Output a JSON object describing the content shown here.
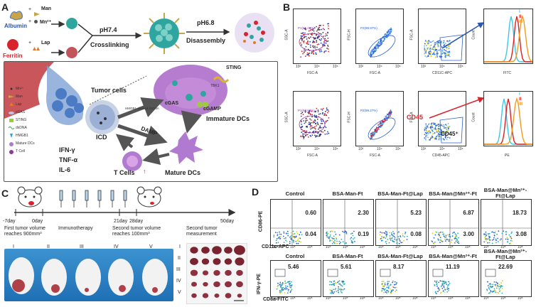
{
  "panels": {
    "a": "A",
    "b": "B",
    "c": "C",
    "d": "D"
  },
  "panelA": {
    "albumin": "Albumin",
    "ferritin": "Ferritin",
    "man": "Man",
    "mn": "Mn²⁺",
    "lap": "Lap",
    "ph74": "pH7.4",
    "crosslinking": "Crosslinking",
    "ph68": "pH6.8",
    "disassembly": "Disassembly",
    "legend": [
      "Mn²⁺",
      "Man",
      "Lap",
      "cGAS",
      "STING",
      "dsDNA",
      "HMGB1",
      "Mature DCs",
      "T Cell"
    ],
    "tumor_cells": "Tumor cells",
    "immature_dcs": "Immature DCs",
    "mature_dcs": "Mature DCs",
    "t_cells": "T Cells",
    "icd": "ICD",
    "damp": "DAMP",
    "cytokines": [
      "IFN-γ",
      "TNF-α",
      "IL-6"
    ],
    "sting": "STING",
    "cgamp": "cGAMP",
    "cgas": "cGAS",
    "tbk1": "TBK1",
    "hmgb1_dsdna": "HMGB1-derived dsDNA"
  },
  "panelB": {
    "row1": [
      {
        "x": "FSC-A",
        "y": "SSC-A",
        "gate": "P1(81.25%)"
      },
      {
        "x": "FSC-A",
        "y": "FSC-H",
        "gate": "P2(98.97%)"
      },
      {
        "x": "CD11C-APC",
        "y": "FSC-A",
        "gate": ""
      }
    ],
    "row2": [
      {
        "x": "FSC-A",
        "y": "SSC-A",
        "gate": "P1(93.63%)"
      },
      {
        "x": "FSC-A",
        "y": "FSC-H",
        "gate": "P2(99.27%)"
      },
      {
        "x": "CD45-APC",
        "y": "FSC-A",
        "gate": ""
      }
    ],
    "ticks": [
      "10²",
      "10⁴",
      "10⁶"
    ],
    "hist1": {
      "x": "FITC",
      "y": "Count",
      "legend": [
        "I",
        "II",
        "III"
      ],
      "colors": [
        "#3cc8e8",
        "#e02020",
        "#f39a1e"
      ]
    },
    "hist2": {
      "x": "PE",
      "y": "Count",
      "legend": [
        "I",
        "II",
        "III"
      ],
      "colors": [
        "#3cc8e8",
        "#e02020",
        "#f39a1e"
      ]
    },
    "cd45": "CD45",
    "cd45plus": "CD45⁺"
  },
  "panelC": {
    "timeline": [
      "-7day",
      "0day",
      "21day",
      "28day",
      "50day"
    ],
    "first": "First tumor volume reaches 900mm³",
    "immuno": "Immunotherapy",
    "second": "Second tumor volume reaches 100mm³",
    "measure": "Second tumor measurement",
    "groups": [
      "I",
      "II",
      "III",
      "IV",
      "V"
    ]
  },
  "panelD": {
    "columns": [
      "Control",
      "BSA-Man-Ft",
      "BSA-Man-Ft@Lap",
      "BSA-Man@Mn²⁺-Ft",
      "BSA-Man@Mn²⁺-Ft@Lap"
    ],
    "row1_y": "CD86-PE",
    "row1_x": "CD11c-APC",
    "row1": [
      {
        "ur": "0.60",
        "lr": "0.04"
      },
      {
        "ur": "2.30",
        "lr": "0.19"
      },
      {
        "ur": "5.23",
        "lr": "0.08"
      },
      {
        "ur": "6.87",
        "lr": "3.00"
      },
      {
        "ur": "18.73",
        "lr": "3.08"
      }
    ],
    "row2_y": "IFN-γ-PE",
    "row2_x": "CD8a-FITC",
    "row2": [
      "5.46",
      "5.61",
      "8.17",
      "11.19",
      "22.69"
    ],
    "ticks": [
      "10⁴",
      "10⁵",
      "10⁶"
    ]
  }
}
